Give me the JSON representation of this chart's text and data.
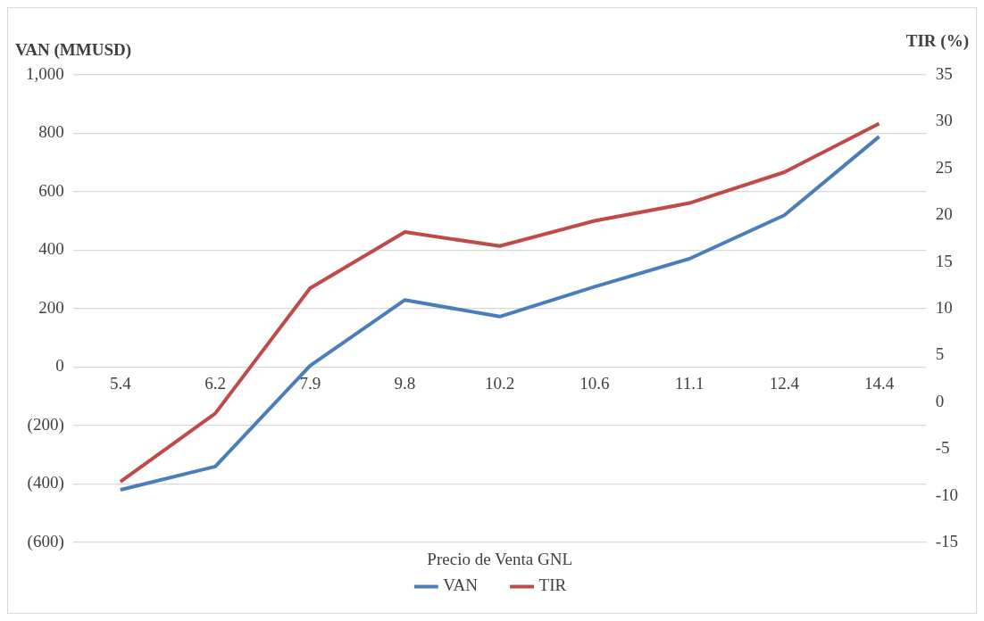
{
  "chart_data": {
    "type": "line",
    "ylabel": "VAN (MMUSD)",
    "y2label": "TIR (%)",
    "xlabel": "Precio de Venta GNL",
    "categories": [
      "5.4",
      "6.2",
      "7.9",
      "9.8",
      "10.2",
      "10.6",
      "11.1",
      "12.4",
      "14.4"
    ],
    "series": [
      {
        "name": "VAN",
        "color": "#4a7ebb",
        "values": [
          -420,
          -340,
          5,
          230,
          173,
          275,
          371,
          520,
          789
        ]
      },
      {
        "name": "TIR",
        "color": "#be4b48",
        "axis": "y2",
        "values": [
          -8.5,
          -1.2,
          12.2,
          18.2,
          16.7,
          19.4,
          21.3,
          24.6,
          29.8
        ]
      }
    ],
    "ylim": [
      -600,
      1000
    ],
    "yticks": [
      {
        "value": -600,
        "label": "(600)"
      },
      {
        "value": -400,
        "label": "(400)"
      },
      {
        "value": -200,
        "label": "(200)"
      },
      0,
      200,
      400,
      600,
      800,
      {
        "value": 1000,
        "label": "1,000"
      }
    ],
    "y2lim": [
      -15,
      35
    ],
    "y2ticks": [
      -15,
      -10,
      -5,
      0,
      5,
      10,
      15,
      20,
      25,
      30,
      35
    ],
    "grid": "y",
    "legend": "bottom",
    "marker": "none",
    "line_style": "solid"
  }
}
